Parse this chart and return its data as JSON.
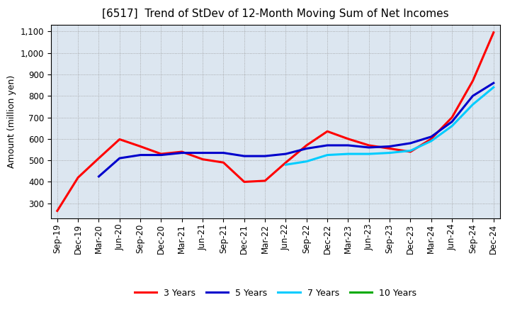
{
  "title": "[6517]  Trend of StDev of 12-Month Moving Sum of Net Incomes",
  "ylabel": "Amount (million yen)",
  "ylim": [
    230,
    1130
  ],
  "yticks": [
    300,
    400,
    500,
    600,
    700,
    800,
    900,
    1000,
    1100
  ],
  "background_color": "#ffffff",
  "plot_bg_color": "#dce6f0",
  "grid_color": "#aaaaaa",
  "x_labels": [
    "Sep-19",
    "Dec-19",
    "Mar-20",
    "Jun-20",
    "Sep-20",
    "Dec-20",
    "Mar-21",
    "Jun-21",
    "Sep-21",
    "Dec-21",
    "Mar-22",
    "Jun-22",
    "Sep-22",
    "Dec-22",
    "Mar-23",
    "Jun-23",
    "Sep-23",
    "Dec-23",
    "Mar-24",
    "Jun-24",
    "Sep-24",
    "Dec-24"
  ],
  "series": [
    {
      "label": "3 Years",
      "color": "#ff0000",
      "data": [
        265,
        420,
        510,
        598,
        565,
        530,
        540,
        505,
        490,
        400,
        405,
        490,
        570,
        635,
        600,
        570,
        555,
        540,
        600,
        700,
        870,
        1095
      ]
    },
    {
      "label": "5 Years",
      "color": "#0000cc",
      "data": [
        null,
        null,
        425,
        510,
        525,
        525,
        535,
        535,
        535,
        520,
        520,
        530,
        555,
        570,
        570,
        560,
        565,
        580,
        610,
        680,
        800,
        860
      ]
    },
    {
      "label": "7 Years",
      "color": "#00ccff",
      "data": [
        null,
        null,
        null,
        null,
        null,
        null,
        null,
        null,
        null,
        null,
        null,
        480,
        495,
        525,
        530,
        530,
        535,
        545,
        590,
        660,
        760,
        840
      ]
    },
    {
      "label": "10 Years",
      "color": "#00aa00",
      "data": [
        null,
        null,
        null,
        null,
        null,
        null,
        null,
        null,
        null,
        null,
        null,
        null,
        null,
        null,
        null,
        null,
        null,
        null,
        null,
        null,
        null,
        null
      ]
    }
  ],
  "legend_loc": "lower center",
  "title_fontsize": 11,
  "label_fontsize": 9,
  "tick_fontsize": 8.5,
  "line_width": 2.2
}
